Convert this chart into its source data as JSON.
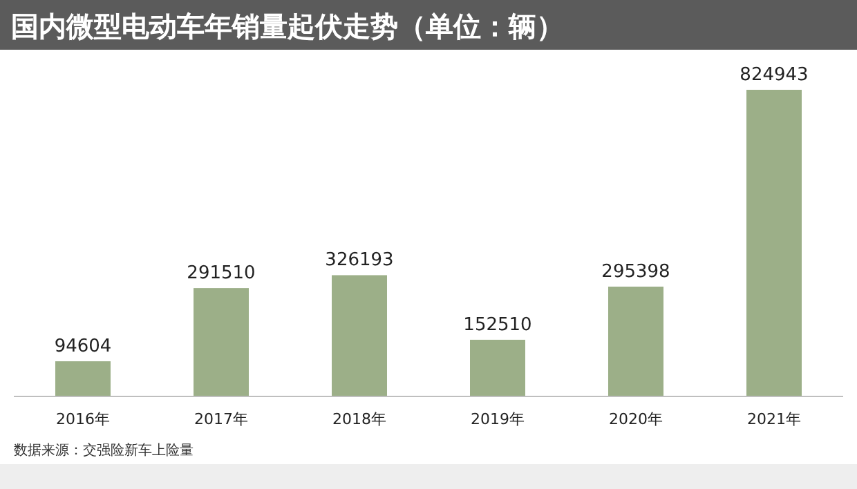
{
  "chart_data": {
    "type": "bar",
    "title": "国内微型电动车年销量起伏走势（单位：辆）",
    "categories": [
      "2016年",
      "2017年",
      "2018年",
      "2019年",
      "2020年",
      "2021年"
    ],
    "values": [
      94604,
      291510,
      326193,
      152510,
      295398,
      824943
    ],
    "color": "#9caf88",
    "data_labels": true,
    "annotations": [
      "数据来源：交强险新车上险量"
    ]
  }
}
